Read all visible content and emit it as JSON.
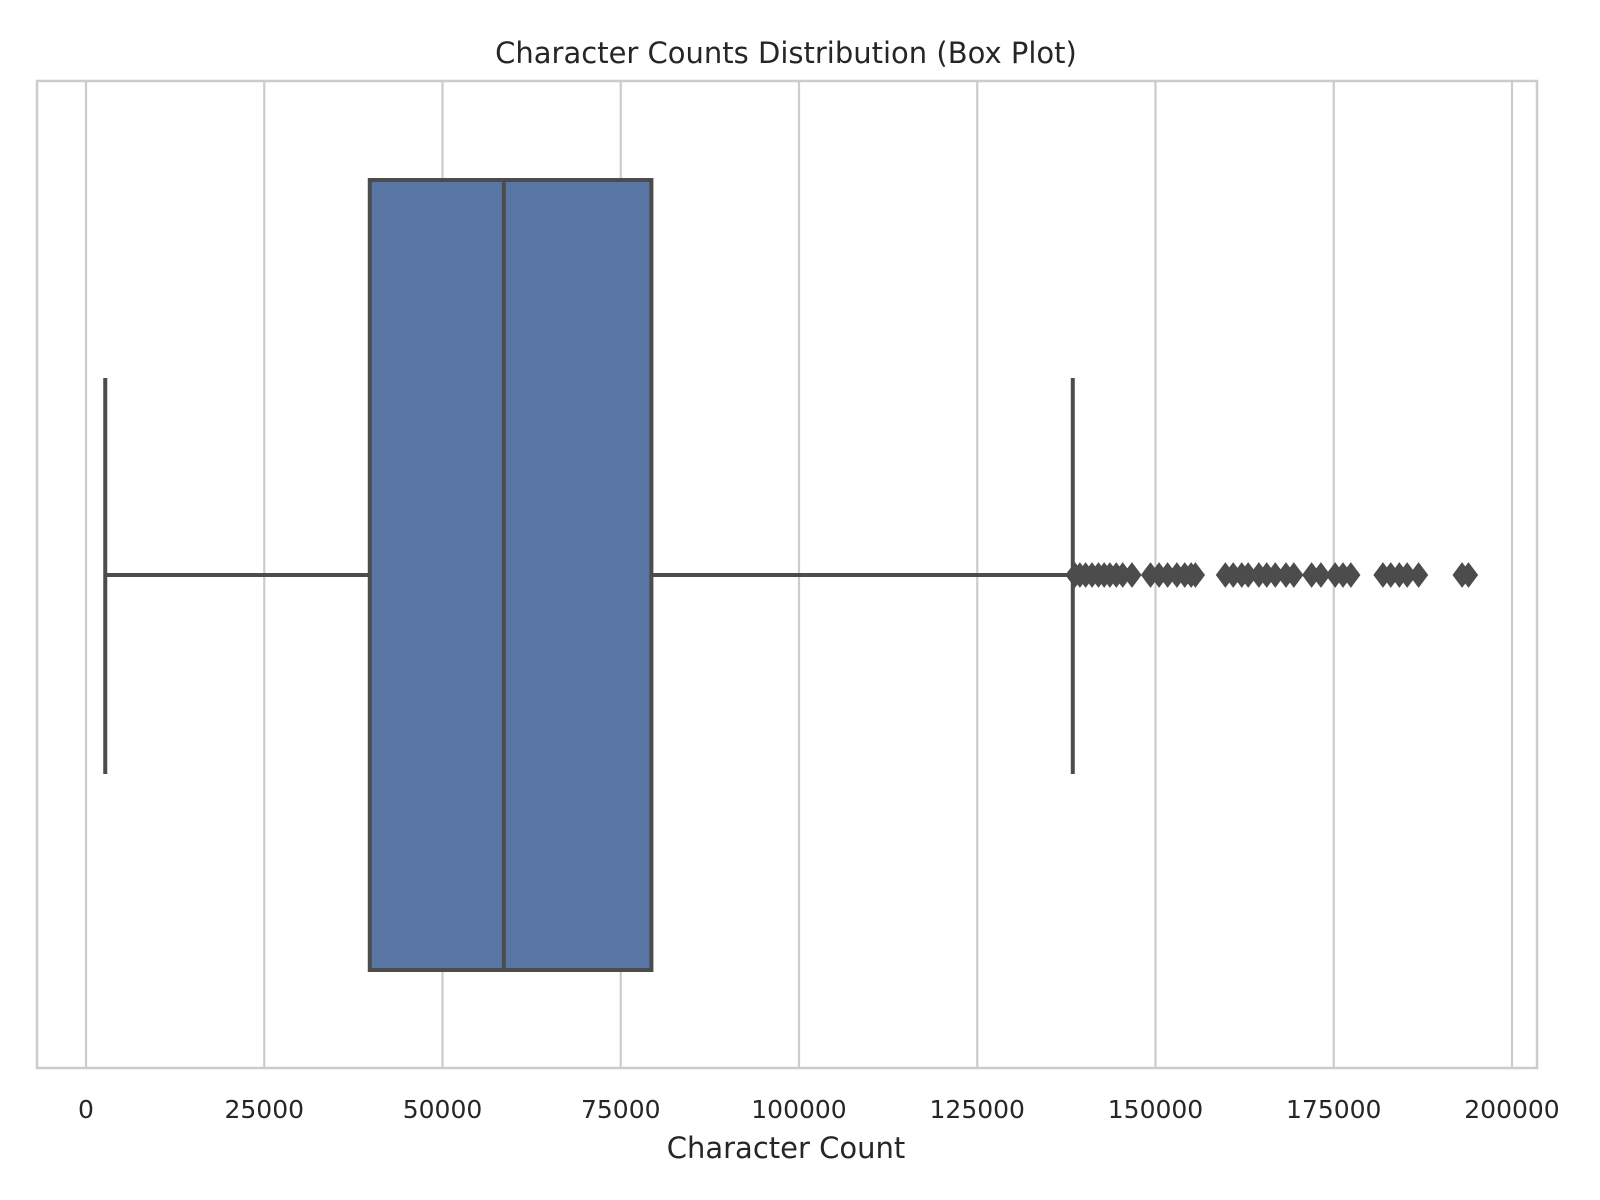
{
  "chart_data": {
    "type": "box",
    "title": "Character Counts Distribution (Box Plot)",
    "xlabel": "Character Count",
    "ylabel": "",
    "orientation": "horizontal",
    "xlim": [
      -7000,
      204000
    ],
    "xticks": [
      0,
      25000,
      50000,
      75000,
      100000,
      125000,
      150000,
      175000,
      200000
    ],
    "xtick_labels": [
      "0",
      "25000",
      "50000",
      "75000",
      "100000",
      "125000",
      "150000",
      "175000",
      "200000"
    ],
    "grid": "vertical",
    "box": {
      "whisker_low": 2700,
      "q1": 39800,
      "median": 58600,
      "q3": 79300,
      "whisker_high": 138400
    },
    "outliers": [
      138700,
      139400,
      140200,
      141100,
      142000,
      142800,
      143600,
      144500,
      145400,
      146700,
      149300,
      150500,
      151700,
      153000,
      154100,
      155000,
      155600,
      159800,
      160900,
      162100,
      163000,
      164500,
      165600,
      166800,
      168300,
      169400,
      171900,
      173200,
      175200,
      176300,
      177400,
      181900,
      183000,
      184200,
      185300,
      186900,
      193000,
      193900
    ],
    "colors": {
      "box_fill": "#5975a4",
      "line": "#4c4c4c",
      "grid": "#cccccc",
      "frame": "#cccccc"
    }
  }
}
